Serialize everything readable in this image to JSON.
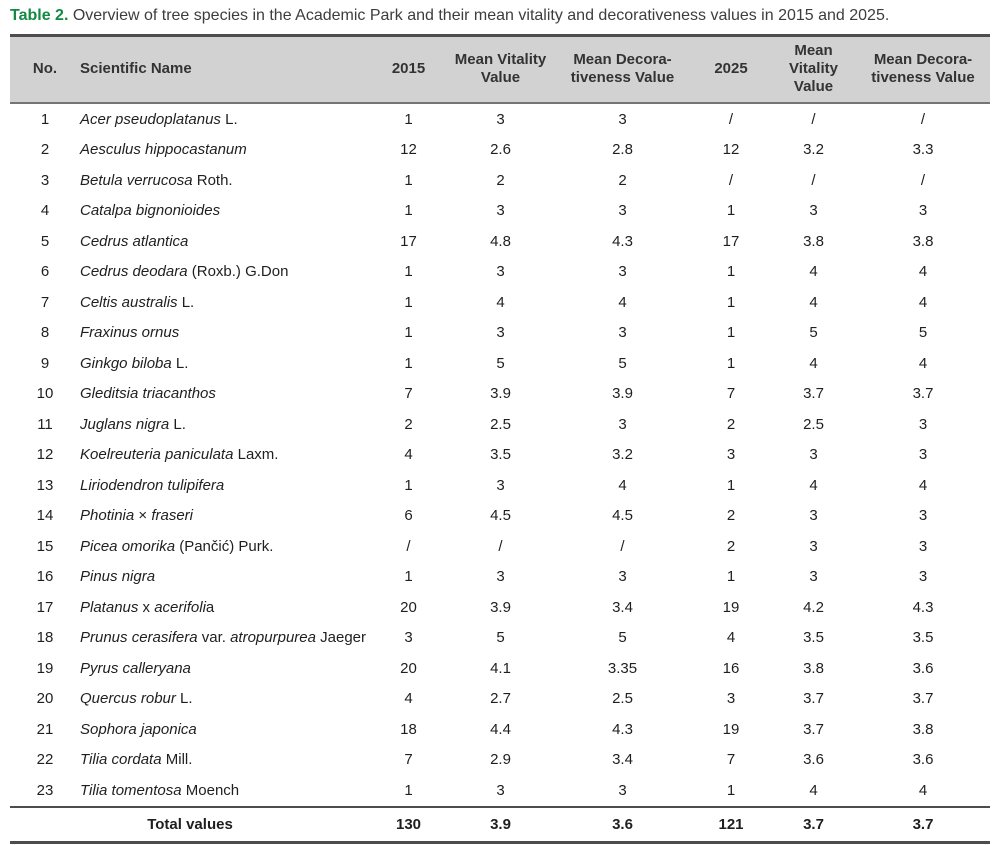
{
  "caption": {
    "label": "Table 2.",
    "text": " Overview of tree species in the Academic Park and their mean vitality and decorativeness values in 2015 and 2025."
  },
  "colors": {
    "accent_green": "#128a43",
    "header_background": "#d2d2d2",
    "border_dark": "#4d4d4d",
    "body_text": "#1f1f1f"
  },
  "table": {
    "headers": [
      {
        "lines": [
          "No."
        ]
      },
      {
        "lines": [
          "Scientific Name"
        ]
      },
      {
        "lines": [
          "2015"
        ]
      },
      {
        "lines": [
          "Mean Vitality",
          "Value"
        ]
      },
      {
        "lines": [
          "Mean Decora-",
          "tiveness Value"
        ]
      },
      {
        "lines": [
          "2025"
        ]
      },
      {
        "lines": [
          "Mean Vitality",
          "Value"
        ]
      },
      {
        "lines": [
          "Mean Decora-",
          "tiveness Value"
        ]
      }
    ],
    "rows": [
      {
        "no": "1",
        "name": [
          [
            "Acer pseudoplatanus",
            true
          ],
          [
            " L.",
            false
          ]
        ],
        "values": [
          "1",
          "3",
          "3",
          "/",
          "/",
          "/"
        ]
      },
      {
        "no": "2",
        "name": [
          [
            "Aesculus hippocastanum",
            true
          ]
        ],
        "values": [
          "12",
          "2.6",
          "2.8",
          "12",
          "3.2",
          "3.3"
        ]
      },
      {
        "no": "3",
        "name": [
          [
            "Betula verrucosa",
            true
          ],
          [
            " Roth.",
            false
          ]
        ],
        "values": [
          "1",
          "2",
          "2",
          "/",
          "/",
          "/"
        ]
      },
      {
        "no": "4",
        "name": [
          [
            "Catalpa bignonioides",
            true
          ]
        ],
        "values": [
          "1",
          "3",
          "3",
          "1",
          "3",
          "3"
        ]
      },
      {
        "no": "5",
        "name": [
          [
            "Cedrus atlantica",
            true
          ]
        ],
        "values": [
          "17",
          "4.8",
          "4.3",
          "17",
          "3.8",
          "3.8"
        ]
      },
      {
        "no": "6",
        "name": [
          [
            "Cedrus deodara",
            true
          ],
          [
            " (Roxb.) G.Don",
            false
          ]
        ],
        "values": [
          "1",
          "3",
          "3",
          "1",
          "4",
          "4"
        ]
      },
      {
        "no": "7",
        "name": [
          [
            "Celtis australis",
            true
          ],
          [
            " L.",
            false
          ]
        ],
        "values": [
          "1",
          "4",
          "4",
          "1",
          "4",
          "4"
        ]
      },
      {
        "no": "8",
        "name": [
          [
            "Fraxinus ornus",
            true
          ]
        ],
        "values": [
          "1",
          "3",
          "3",
          "1",
          "5",
          "5"
        ]
      },
      {
        "no": "9",
        "name": [
          [
            "Ginkgo biloba",
            true
          ],
          [
            " L.",
            false
          ]
        ],
        "values": [
          "1",
          "5",
          "5",
          "1",
          "4",
          "4"
        ]
      },
      {
        "no": "10",
        "name": [
          [
            "Gleditsia triacanthos",
            true
          ]
        ],
        "values": [
          "7",
          "3.9",
          "3.9",
          "7",
          "3.7",
          "3.7"
        ]
      },
      {
        "no": "11",
        "name": [
          [
            "Juglans nigra",
            true
          ],
          [
            " L.",
            false
          ]
        ],
        "values": [
          "2",
          "2.5",
          "3",
          "2",
          "2.5",
          "3"
        ]
      },
      {
        "no": "12",
        "name": [
          [
            "Koelreuteria paniculata",
            true
          ],
          [
            " Laxm.",
            false
          ]
        ],
        "values": [
          "4",
          "3.5",
          "3.2",
          "3",
          "3",
          "3"
        ]
      },
      {
        "no": "13",
        "name": [
          [
            "Liriodendron tulipifera",
            true
          ]
        ],
        "values": [
          "1",
          "3",
          "4",
          "1",
          "4",
          "4"
        ]
      },
      {
        "no": "14",
        "name": [
          [
            "Photinia",
            true
          ],
          [
            " × ",
            false
          ],
          [
            "fraseri",
            true
          ]
        ],
        "values": [
          "6",
          "4.5",
          "4.5",
          "2",
          "3",
          "3"
        ]
      },
      {
        "no": "15",
        "name": [
          [
            "Picea omorika",
            true
          ],
          [
            " (Pančić) Purk.",
            false
          ]
        ],
        "values": [
          "/",
          "/",
          "/",
          "2",
          "3",
          "3"
        ]
      },
      {
        "no": "16",
        "name": [
          [
            "Pinus nigra",
            true
          ]
        ],
        "values": [
          "1",
          "3",
          "3",
          "1",
          "3",
          "3"
        ]
      },
      {
        "no": "17",
        "name": [
          [
            "Platanus",
            true
          ],
          [
            " x ",
            false
          ],
          [
            "acerifoli",
            true
          ],
          [
            "a",
            false
          ]
        ],
        "values": [
          "20",
          "3.9",
          "3.4",
          "19",
          "4.2",
          "4.3"
        ]
      },
      {
        "no": "18",
        "name": [
          [
            "Prunus cerasifera",
            true
          ],
          [
            " var. ",
            false
          ],
          [
            "atropurpurea",
            true
          ],
          [
            " Jaeger",
            false
          ]
        ],
        "values": [
          "3",
          "5",
          "5",
          "4",
          "3.5",
          "3.5"
        ]
      },
      {
        "no": "19",
        "name": [
          [
            "Pyrus calleryana",
            true
          ]
        ],
        "values": [
          "20",
          "4.1",
          "3.35",
          "16",
          "3.8",
          "3.6"
        ]
      },
      {
        "no": "20",
        "name": [
          [
            "Quercus robur",
            true
          ],
          [
            " L.",
            false
          ]
        ],
        "values": [
          "4",
          "2.7",
          "2.5",
          "3",
          "3.7",
          "3.7"
        ]
      },
      {
        "no": "21",
        "name": [
          [
            "Sophora japonica",
            true
          ]
        ],
        "values": [
          "18",
          "4.4",
          "4.3",
          "19",
          "3.7",
          "3.8"
        ]
      },
      {
        "no": "22",
        "name": [
          [
            "Tilia cordata",
            true
          ],
          [
            " Mill.",
            false
          ]
        ],
        "values": [
          "7",
          "2.9",
          "3.4",
          "7",
          "3.6",
          "3.6"
        ]
      },
      {
        "no": "23",
        "name": [
          [
            "Tilia tomentosa",
            true
          ],
          [
            " Moench",
            false
          ]
        ],
        "values": [
          "1",
          "3",
          "3",
          "1",
          "4",
          "4"
        ]
      }
    ],
    "total": {
      "label": "Total values",
      "values": [
        "130",
        "3.9",
        "3.6",
        "121",
        "3.7",
        "3.7"
      ]
    }
  }
}
